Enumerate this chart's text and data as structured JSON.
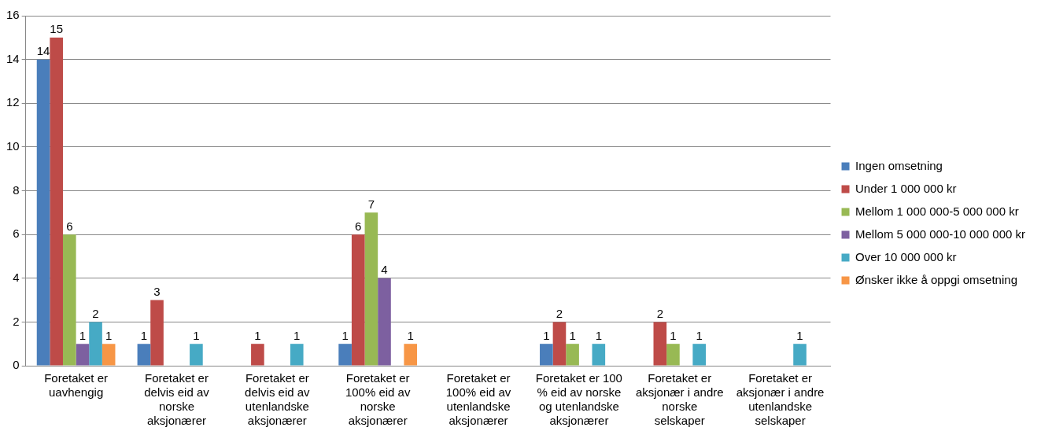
{
  "chart_data": {
    "type": "bar",
    "categories": [
      "Foretaket er uavhengig",
      "Foretaket er delvis eid av norske aksjonærer",
      "Foretaket er delvis eid av utenlandske aksjonærer",
      "Foretaket er 100% eid av norske aksjonærer",
      "Foretaket er 100% eid av utenlandske aksjonærer",
      "Foretaket er 100 % eid av norske og utenlandske aksjonærer",
      "Foretaket er aksjonær i andre norske selskaper",
      "Foretaket er aksjonær i andre utenlandske selskaper"
    ],
    "series": [
      {
        "name": "Ingen omsetning",
        "color": "#4a7ebb",
        "values": [
          14,
          1,
          null,
          1,
          null,
          1,
          null,
          null
        ]
      },
      {
        "name": "Under 1 000 000 kr",
        "color": "#be4b48",
        "values": [
          15,
          3,
          1,
          6,
          null,
          2,
          2,
          null
        ]
      },
      {
        "name": "Mellom 1 000 000-5 000 000 kr",
        "color": "#98b954",
        "values": [
          6,
          null,
          null,
          7,
          null,
          1,
          1,
          null
        ]
      },
      {
        "name": "Mellom 5 000 000-10 000 000 kr",
        "color": "#7d60a0",
        "values": [
          1,
          null,
          null,
          4,
          null,
          null,
          null,
          null
        ]
      },
      {
        "name": "Over 10 000 000 kr",
        "color": "#46aac5",
        "values": [
          2,
          1,
          1,
          null,
          null,
          1,
          1,
          1
        ]
      },
      {
        "name": "Ønsker ikke å oppgi omsetning",
        "color": "#f79646",
        "values": [
          1,
          null,
          null,
          1,
          null,
          null,
          null,
          null
        ]
      }
    ],
    "ylim": [
      0,
      16
    ],
    "yticks": [
      0,
      2,
      4,
      6,
      8,
      10,
      12,
      14,
      16
    ],
    "grid": "y",
    "legend": "right",
    "data_labels": true
  }
}
